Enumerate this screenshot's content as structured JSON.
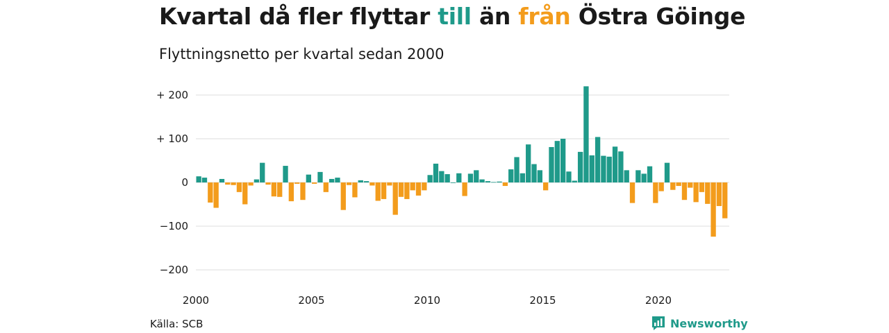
{
  "title": {
    "part1": "Kvartal då fler flyttar ",
    "till": "till",
    "part2": " än ",
    "fran": "från",
    "part3": " Östra Göinge"
  },
  "subtitle": "Flyttningsnetto per kvartal sedan 2000",
  "source": "Källa: SCB",
  "brand": {
    "name": "Newsworthy",
    "icon": "chart-logo-icon"
  },
  "colors": {
    "positive": "#1f9a8a",
    "negative": "#f39c1c",
    "grid": "#dddddd",
    "text": "#1a1a1a"
  },
  "chart_data": {
    "type": "bar",
    "title": "Kvartal då fler flyttar till än från Östra Göinge",
    "subtitle": "Flyttningsnetto per kvartal sedan 2000",
    "x_start": 2000,
    "periods_per_year": 4,
    "xticks": [
      "2000",
      "2005",
      "2010",
      "2015",
      "2020"
    ],
    "yticks": [
      {
        "value": 200,
        "label": "+ 200"
      },
      {
        "value": 100,
        "label": "+ 100"
      },
      {
        "value": 0,
        "label": "0"
      },
      {
        "value": -100,
        "label": "−100"
      },
      {
        "value": -200,
        "label": "−200"
      }
    ],
    "ylim": [
      -200,
      200
    ],
    "grid": true,
    "values": [
      14,
      11,
      -46,
      -58,
      8,
      -5,
      -6,
      -22,
      -50,
      -7,
      7,
      45,
      -5,
      -32,
      -33,
      38,
      -43,
      -3,
      -40,
      18,
      -3,
      24,
      -22,
      8,
      11,
      -63,
      -6,
      -34,
      5,
      3,
      -7,
      -42,
      -38,
      -7,
      -74,
      -33,
      -38,
      -18,
      -30,
      -18,
      17,
      43,
      26,
      19,
      0,
      21,
      -31,
      20,
      28,
      7,
      3,
      1,
      2,
      -8,
      30,
      58,
      21,
      87,
      42,
      28,
      -18,
      81,
      95,
      100,
      25,
      4,
      70,
      220,
      62,
      104,
      61,
      59,
      82,
      71,
      28,
      -47,
      28,
      20,
      37,
      -47,
      -20,
      45,
      -17,
      -8,
      -40,
      -12,
      -45,
      -22,
      -49,
      -124,
      -54,
      -82
    ]
  }
}
